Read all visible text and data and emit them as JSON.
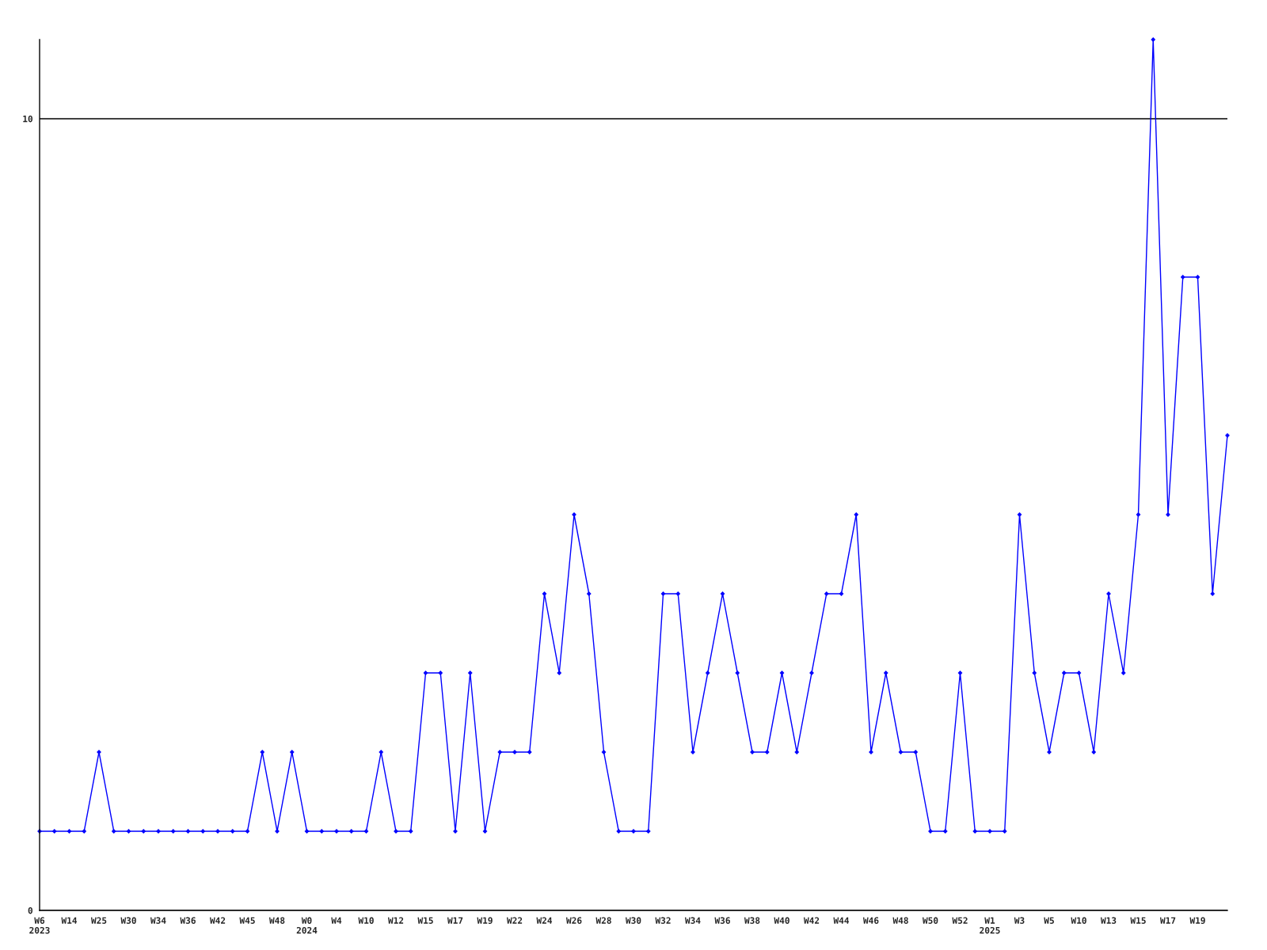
{
  "chart_data": {
    "type": "line",
    "categories": [
      "W6\n2023",
      null,
      "W14",
      null,
      "W25",
      null,
      "W30",
      null,
      "W34",
      null,
      "W36",
      null,
      "W42",
      null,
      "W45",
      null,
      "W48",
      null,
      "W0\n2024",
      null,
      "W4",
      null,
      "W10",
      null,
      "W12",
      null,
      "W15",
      null,
      "W17",
      null,
      "W19",
      null,
      "W22",
      null,
      "W24",
      null,
      "W26",
      null,
      "W28",
      null,
      "W30",
      null,
      "W32",
      null,
      "W34",
      null,
      "W36",
      null,
      "W38",
      null,
      "W40",
      null,
      "W42",
      null,
      "W44",
      null,
      "W46",
      null,
      "W48",
      null,
      "W50",
      null,
      "W52",
      null,
      "W1\n2025",
      null,
      "W3",
      null,
      "W5",
      null,
      "W10",
      null,
      "W13",
      null,
      "W15",
      null,
      "W17",
      null,
      "W19",
      null,
      null
    ],
    "series": [
      {
        "color": "#0000ff",
        "values": [
          1,
          1,
          1,
          1,
          2,
          1,
          1,
          1,
          1,
          1,
          1,
          1,
          1,
          1,
          1,
          2,
          1,
          2,
          1,
          1,
          1,
          1,
          1,
          2,
          1,
          1,
          3,
          3,
          1,
          3,
          1,
          2,
          2,
          2,
          4,
          3,
          5,
          4,
          2,
          1,
          1,
          1,
          4,
          4,
          2,
          3,
          4,
          3,
          2,
          2,
          3,
          2,
          3,
          4,
          4,
          5,
          2,
          3,
          2,
          2,
          1,
          1,
          3,
          1,
          1,
          1,
          5,
          3,
          2,
          3,
          3,
          2,
          4,
          3,
          5,
          11,
          5,
          8,
          8,
          4,
          6
        ]
      }
    ],
    "ylim": [
      0,
      11
    ],
    "yticks": [
      0,
      10
    ],
    "grid": "y",
    "marker": "diamond",
    "line_style": "solid"
  }
}
